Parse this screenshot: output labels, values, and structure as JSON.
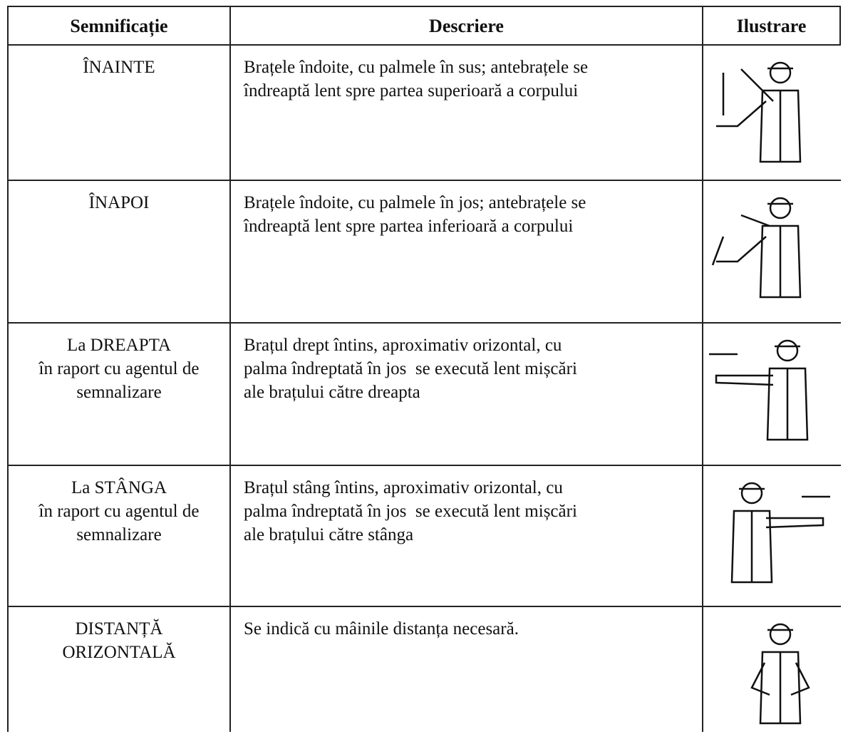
{
  "table": {
    "header": [
      "Semnificație",
      "Descriere",
      "Ilustrare"
    ],
    "rows": [
      {
        "meaning": [
          "ÎNAINTE"
        ],
        "description": [
          "Brațele îndoite, cu palmele în sus; antebrațele se",
          "îndreaptă lent spre partea superioară a corpului"
        ]
      },
      {
        "meaning": [
          "ÎNAPOI"
        ],
        "description": [
          "Brațele îndoite, cu palmele în jos; antebrațele se",
          "îndreaptă lent spre partea inferioară a corpului"
        ]
      },
      {
        "meaning": [
          "La DREAPTA",
          "în raport cu agentul de",
          "semnalizare"
        ],
        "description": [
          "Brațul drept întins, aproximativ orizontal, cu",
          "palma îndreptată în jos  se execută lent mișcări",
          "ale brațului către dreapta"
        ]
      },
      {
        "meaning": [
          "La STÂNGA",
          "în raport cu agentul de",
          "semnalizare"
        ],
        "description": [
          "Brațul stâng întins, aproximativ orizontal, cu",
          "palma îndreptată în jos  se execută lent mișcări",
          "ale brațului către stânga"
        ]
      },
      {
        "meaning": [
          "DISTANȚĂ",
          "ORIZONTALĂ"
        ],
        "description": [
          "Se indică cu mâinile distanța necesară."
        ]
      }
    ]
  }
}
